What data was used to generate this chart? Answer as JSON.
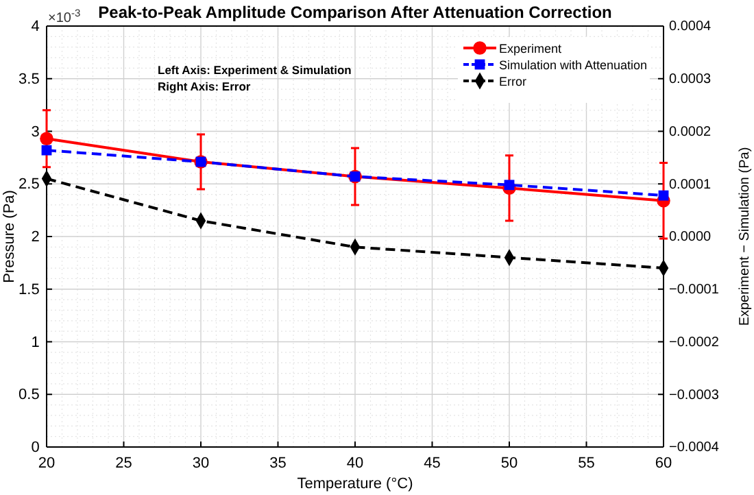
{
  "chart_data": {
    "type": "line",
    "title": "Peak-to-Peak Amplitude Comparison After Attenuation Correction",
    "xlabel": "Temperature (°C)",
    "ylabel": "Pressure (Pa)",
    "y2label": "Experiment − Simulation (Pa)",
    "x": [
      20,
      30,
      40,
      50,
      60
    ],
    "series": [
      {
        "name": "Experiment",
        "color": "#ff0000",
        "values": [
          2.93,
          2.71,
          2.57,
          2.46,
          2.34
        ],
        "errors": [
          0.27,
          0.26,
          0.27,
          0.31,
          0.36
        ],
        "marker": "circle",
        "line_style": "solid"
      },
      {
        "name": "Simulation with Attenuation",
        "color": "#0000ff",
        "values": [
          2.82,
          2.71,
          2.57,
          2.49,
          2.39
        ],
        "marker": "square",
        "line_style": "dashed"
      },
      {
        "name": "Error",
        "color": "#000000",
        "values": [
          0.00011,
          3e-05,
          -2e-05,
          -4e-05,
          -6e-05
        ],
        "axis": "y2",
        "marker": "diamond",
        "line_style": "dashed"
      }
    ],
    "xlim": [
      20,
      60
    ],
    "xticks": [
      20,
      25,
      30,
      35,
      40,
      45,
      50,
      55,
      60
    ],
    "ylim": [
      0,
      4
    ],
    "yticks": [
      0,
      0.5,
      1,
      1.5,
      2,
      2.5,
      3,
      3.5,
      4
    ],
    "y2lim": [
      -0.0004,
      0.0004
    ],
    "y2ticks": [
      {
        "value": -0.0004,
        "label": "−0.0004"
      },
      {
        "value": -0.0003,
        "label": "−0.0003"
      },
      {
        "value": -0.0002,
        "label": "−0.0002"
      },
      {
        "value": -0.0001,
        "label": "−0.0001"
      },
      {
        "value": 0,
        "label": "0.0000"
      },
      0.0001,
      0.0002,
      0.0003,
      0.0004
    ],
    "annotations": [
      "×10$^{-3}$",
      "Left Axis: Experiment & Simulation",
      "Right Axis: Error"
    ],
    "grid": true,
    "legend": "top right"
  }
}
